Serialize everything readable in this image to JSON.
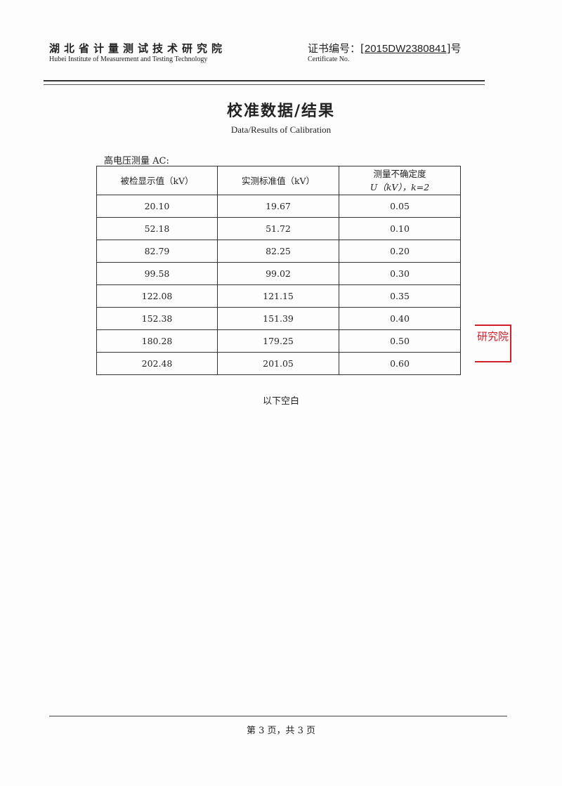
{
  "header": {
    "institute_cn": "湖北省计量测试技术研究院",
    "institute_en": "Hubei Institute of Measurement and Testing Technology",
    "certificate_label_cn": "证书编号：",
    "certificate_number": "2015DW2380841",
    "certificate_suffix": "号",
    "certificate_label_en": "Certificate No."
  },
  "title_cn": "校准数据/结果",
  "title_en": "Data/Results of Calibration",
  "section_label": "高电压测量 AC:",
  "table": {
    "headers": [
      "被检显示值（kV）",
      "实测标准值（kV）",
      "测量不确定度",
      "U（kV），k=2"
    ],
    "rows": [
      [
        "20.10",
        "19.67",
        "0.05"
      ],
      [
        "52.18",
        "51.72",
        "0.10"
      ],
      [
        "82.79",
        "82.25",
        "0.20"
      ],
      [
        "99.58",
        "99.02",
        "0.30"
      ],
      [
        "122.08",
        "121.15",
        "0.35"
      ],
      [
        "152.38",
        "151.39",
        "0.40"
      ],
      [
        "180.28",
        "179.25",
        "0.50"
      ],
      [
        "202.48",
        "201.05",
        "0.60"
      ]
    ]
  },
  "blank_note": "以下空白",
  "stamp_text": "研究院",
  "stamp_color": "#d0202a",
  "footer": "第 3 页，共 3 页"
}
